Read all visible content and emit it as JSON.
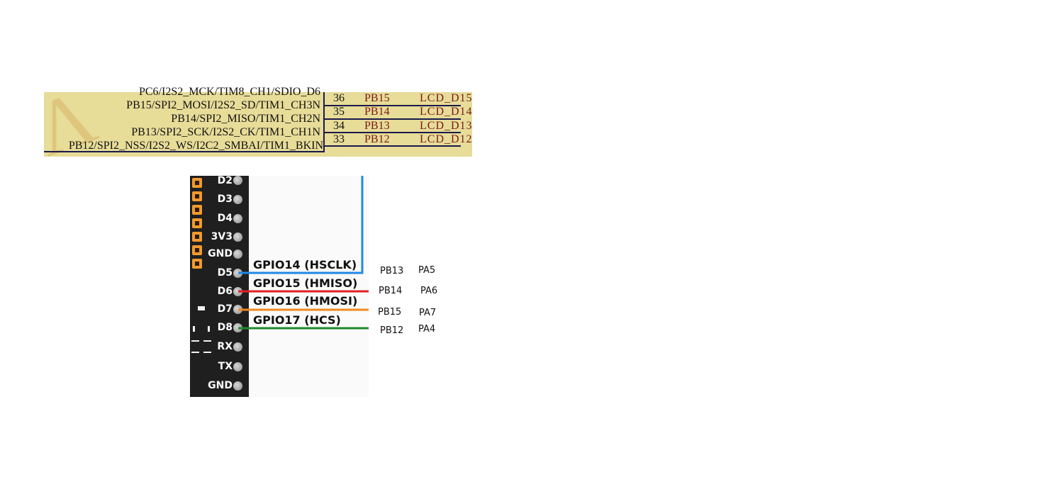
{
  "schematic": {
    "rows": [
      {
        "pin_name": "PC6/I2S2_MCK/TIM8_CH1/SDIO_D6",
        "pin_number": "36",
        "net": "PB15",
        "label": "LCD_D15"
      },
      {
        "pin_name": "PB15/SPI2_MOSI/I2S2_SD/TIM1_CH3N",
        "pin_number": "35",
        "net": "PB14",
        "label": "LCD_D14"
      },
      {
        "pin_name": "PB14/SPI2_MISO/TIM1_CH2N",
        "pin_number": "34",
        "net": "PB13",
        "label": "LCD_D13"
      },
      {
        "pin_name": "PB13/SPI2_SCK/I2S2_CK/TIM1_CH1N",
        "pin_number": "33",
        "net": "PB12",
        "label": "LCD_D12"
      },
      {
        "pin_name": "PB12/SPI2_NSS/I2S2_WS/I2C2_SMBAI/TIM1_BKIN"
      }
    ],
    "colors": {
      "background": "#e7dc98",
      "net_text": "#7a1a1a",
      "wire": "#1a1a4a"
    }
  },
  "board": {
    "pins": [
      "D2",
      "D3",
      "D4",
      "3V3",
      "GND",
      "D5",
      "D6",
      "D7",
      "D8",
      "RX",
      "TX",
      "GND"
    ],
    "connections": [
      {
        "pin": "D5",
        "gpio": "GPIO14 (HSCLK)",
        "pb": "PB13",
        "pa": "PA5",
        "color": "#2288e6"
      },
      {
        "pin": "D6",
        "gpio": "GPIO15 (HMISO)",
        "pb": "PB14",
        "pa": "PA6",
        "color": "#e02020"
      },
      {
        "pin": "D7",
        "gpio": "GPIO16 (HMOSI)",
        "pb": "PB15",
        "pa": "PA7",
        "color": "#f08a1e"
      },
      {
        "pin": "D8",
        "gpio": "GPIO17 (HCS)",
        "pb": "PB12",
        "pa": "PA4",
        "color": "#1e8a2a"
      }
    ],
    "colors": {
      "board": "#1f1f1f",
      "header_pin": "#f29a2e"
    }
  }
}
